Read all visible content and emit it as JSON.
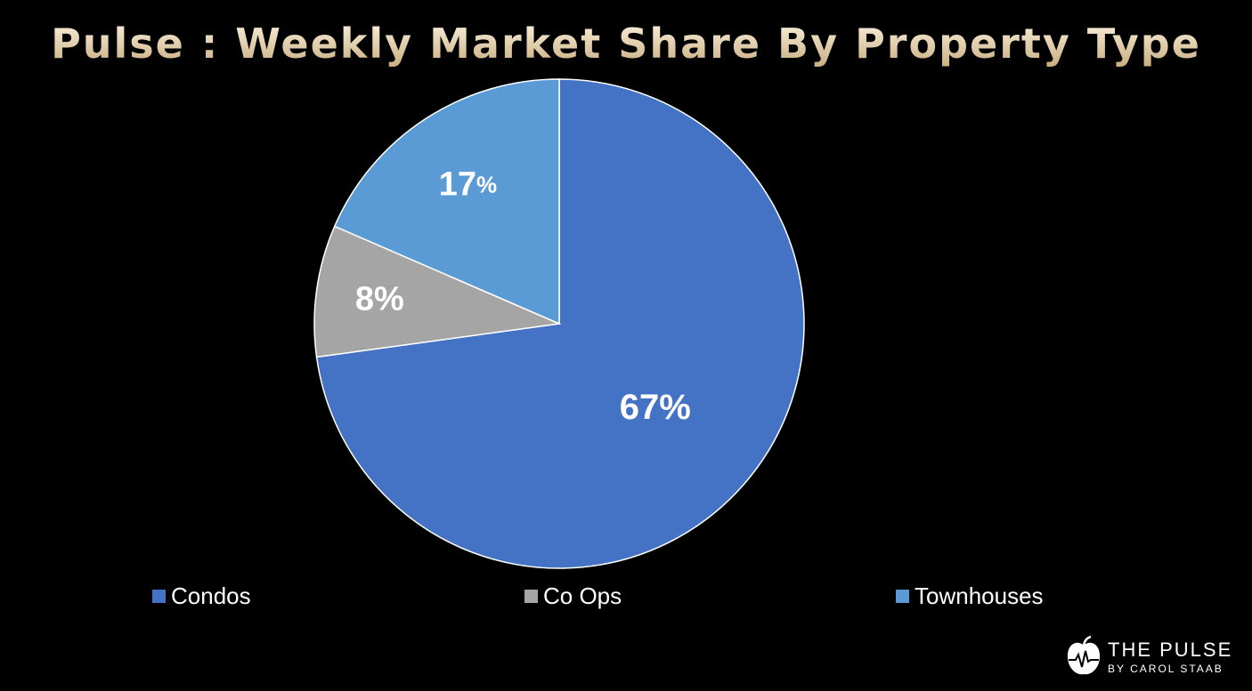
{
  "chart_data": {
    "type": "pie",
    "title": "Pulse : Weekly Market Share By Property Type",
    "slices": [
      {
        "label": "Condos",
        "value": 67,
        "display": "67%",
        "color": "#4472c4"
      },
      {
        "label": "Co Ops",
        "value": 8,
        "display": "8%",
        "color": "#a5a5a5"
      },
      {
        "label": "Townhouses",
        "value": 17,
        "display": "17",
        "display_unit": "%",
        "color": "#5b9bd5"
      }
    ],
    "legend_position": "bottom",
    "start_angle": "12 o'clock, clockwise"
  },
  "brand": {
    "name": "THE PULSE",
    "sub": "BY CAROL STAAB"
  }
}
